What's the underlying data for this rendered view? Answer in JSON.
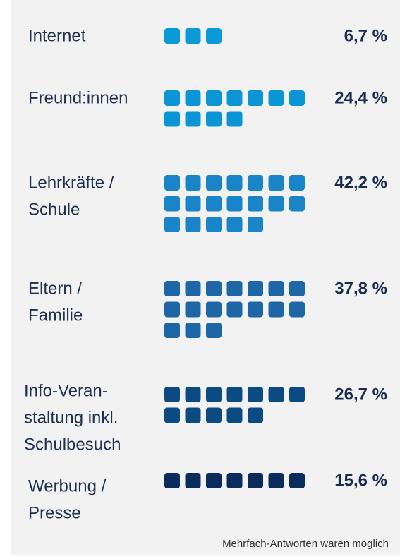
{
  "chart_data": {
    "type": "pictogram",
    "categories": [
      [
        "Internet"
      ],
      [
        "Freund:innen"
      ],
      [
        "Lehrkräfte /",
        "Schule"
      ],
      [
        "Eltern /",
        "Familie"
      ],
      [
        "Info-Veran-",
        "staltung inkl.",
        "Schulbesuch"
      ],
      [
        "Werbung /",
        "Presse"
      ]
    ],
    "values": [
      6.7,
      24.4,
      42.2,
      37.8,
      26.7,
      15.6
    ],
    "value_labels": [
      "6,7 %",
      "24,4 %",
      "42,2 %",
      "37,8 %",
      "26,7 %",
      "15,6 %"
    ],
    "colors": [
      "#0a9ad8",
      "#0a95d4",
      "#1a84c8",
      "#1d67a6",
      "#0c4b82",
      "#0a2c5c"
    ],
    "note": "Mehrfach-Antworten waren möglich"
  }
}
